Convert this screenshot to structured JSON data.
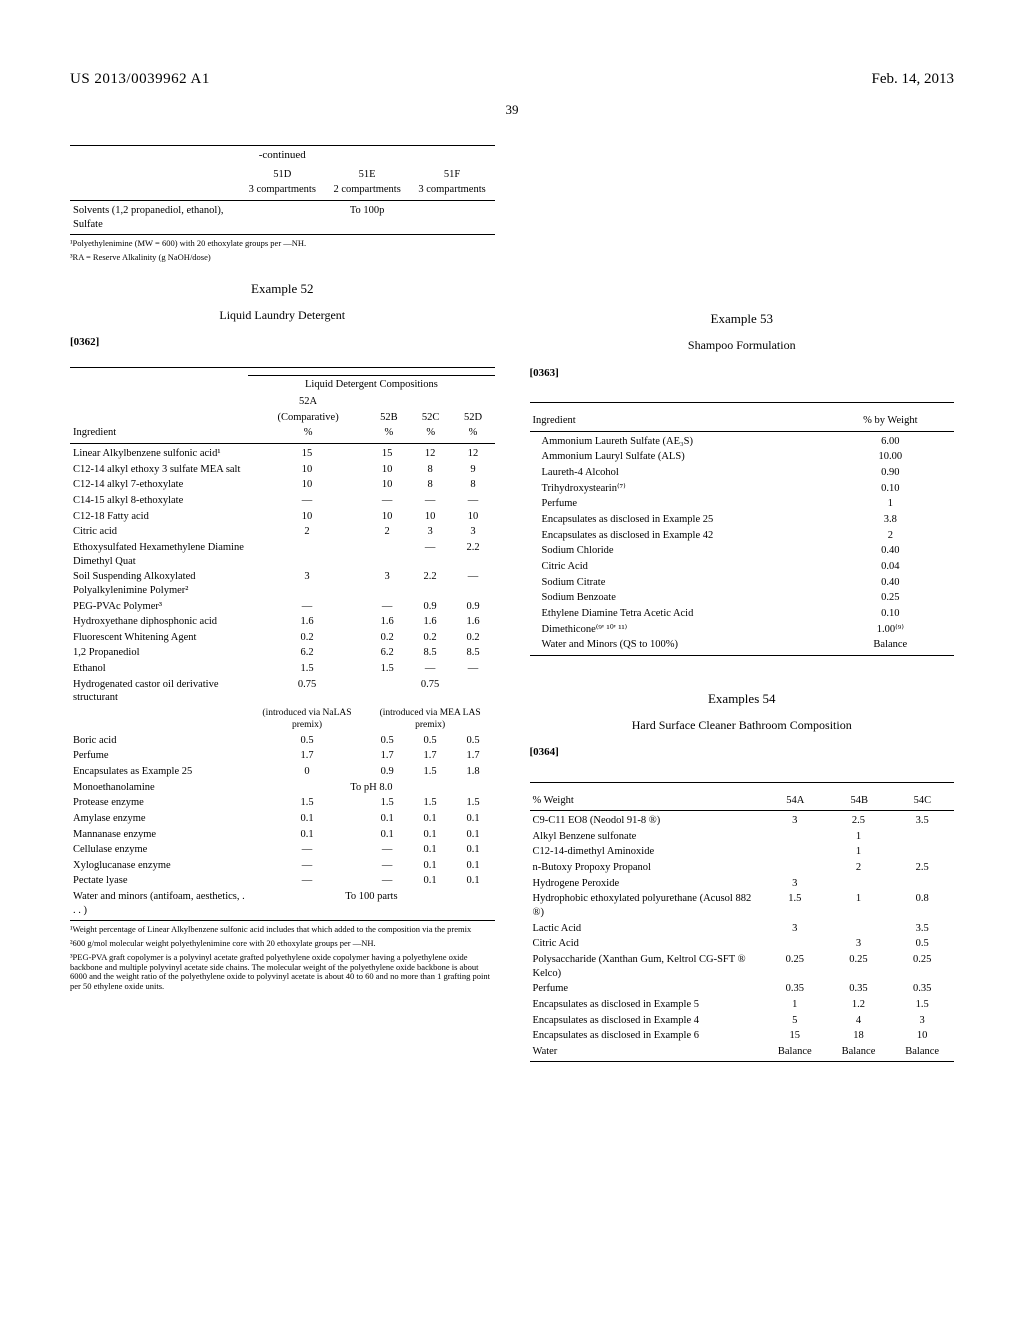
{
  "header": {
    "pub_number": "US 2013/0039962 A1",
    "pub_date": "Feb. 14, 2013",
    "page_num": "39"
  },
  "table51": {
    "continued_label": "-continued",
    "cols": [
      {
        "id": "51D",
        "desc": "3 compartments"
      },
      {
        "id": "51E",
        "desc": "2 compartments"
      },
      {
        "id": "51F",
        "desc": "3 compartments"
      }
    ],
    "row_label": "Solvents (1,2 propanediol, ethanol), Sulfate",
    "row_value": "To 100p",
    "footnotes": [
      "¹Polyethylenimine (MW = 600) with 20 ethoxylate groups per —NH.",
      "³RA = Reserve Alkalinity (g NaOH/dose)"
    ]
  },
  "example52": {
    "title": "Example 52",
    "subtitle": "Liquid Laundry Detergent",
    "para": "[0362]",
    "group_header": "Liquid Detergent Compositions",
    "cols": [
      {
        "id": "52A",
        "sub": "(Comparative)",
        "unit": "%"
      },
      {
        "id": "52B",
        "unit": "%"
      },
      {
        "id": "52C",
        "unit": "%"
      },
      {
        "id": "52D",
        "unit": "%"
      }
    ],
    "ingredient_label": "Ingredient",
    "rows": [
      {
        "name": "Linear Alkylbenzene sulfonic acid¹",
        "v": [
          "15",
          "15",
          "12",
          "12"
        ]
      },
      {
        "name": "C12-14 alkyl ethoxy 3 sulfate MEA salt",
        "v": [
          "10",
          "10",
          "8",
          "9"
        ]
      },
      {
        "name": "C12-14 alkyl 7-ethoxylate",
        "v": [
          "10",
          "10",
          "8",
          "8"
        ]
      },
      {
        "name": "C14-15 alkyl 8-ethoxylate",
        "v": [
          "—",
          "—",
          "—",
          "—"
        ]
      },
      {
        "name": "C12-18 Fatty acid",
        "v": [
          "10",
          "10",
          "10",
          "10"
        ]
      },
      {
        "name": "Citric acid",
        "v": [
          "2",
          "2",
          "3",
          "3"
        ]
      },
      {
        "name": "Ethoxysulfated Hexamethylene Diamine Dimethyl Quat",
        "v": [
          "",
          "",
          "—",
          "2.2"
        ]
      },
      {
        "name": "Soil Suspending Alkoxylated Polyalkylenimine Polymer²",
        "v": [
          "3",
          "3",
          "2.2",
          "—"
        ]
      },
      {
        "name": "PEG-PVAc Polymer³",
        "v": [
          "—",
          "—",
          "0.9",
          "0.9"
        ]
      },
      {
        "name": "Hydroxyethane diphosphonic acid",
        "v": [
          "1.6",
          "1.6",
          "1.6",
          "1.6"
        ]
      },
      {
        "name": "Fluorescent Whitening Agent",
        "v": [
          "0.2",
          "0.2",
          "0.2",
          "0.2"
        ]
      },
      {
        "name": "1,2 Propanediol",
        "v": [
          "6.2",
          "6.2",
          "8.5",
          "8.5"
        ]
      },
      {
        "name": "Ethanol",
        "v": [
          "1.5",
          "1.5",
          "—",
          "—"
        ]
      },
      {
        "name": "Hydrogenated castor oil derivative structurant",
        "v": [
          "0.75",
          "",
          "0.75",
          ""
        ],
        "special": "castor"
      },
      {
        "name": "",
        "v": [
          "(introduced via NaLAS premix)",
          "",
          "(introduced via MEA LAS premix)",
          ""
        ],
        "special": "castor2"
      },
      {
        "name": "Boric acid",
        "v": [
          "0.5",
          "0.5",
          "0.5",
          "0.5"
        ]
      },
      {
        "name": "Perfume",
        "v": [
          "1.7",
          "1.7",
          "1.7",
          "1.7"
        ]
      },
      {
        "name": "Encapsulates as Example 25",
        "v": [
          "0",
          "0.9",
          "1.5",
          "1.8"
        ]
      },
      {
        "name": "Monoethanolamine",
        "v": [
          "",
          "",
          "",
          ""
        ],
        "span": "To pH 8.0"
      },
      {
        "name": "Protease enzyme",
        "v": [
          "1.5",
          "1.5",
          "1.5",
          "1.5"
        ]
      },
      {
        "name": "Amylase enzyme",
        "v": [
          "0.1",
          "0.1",
          "0.1",
          "0.1"
        ]
      },
      {
        "name": "Mannanase enzyme",
        "v": [
          "0.1",
          "0.1",
          "0.1",
          "0.1"
        ]
      },
      {
        "name": "Cellulase enzyme",
        "v": [
          "—",
          "—",
          "0.1",
          "0.1"
        ]
      },
      {
        "name": "Xyloglucanase enzyme",
        "v": [
          "—",
          "—",
          "0.1",
          "0.1"
        ]
      },
      {
        "name": "Pectate lyase",
        "v": [
          "—",
          "—",
          "0.1",
          "0.1"
        ]
      },
      {
        "name": "Water and minors (antifoam, aesthetics, . . . )",
        "v": [
          "",
          "",
          "",
          ""
        ],
        "span": "To 100 parts"
      }
    ],
    "footnotes": [
      "¹Weight percentage of Linear Alkylbenzene sulfonic acid includes that which added to the composition via the premix",
      "²600 g/mol molecular weight polyethylenimine core with 20 ethoxylate groups per —NH.",
      "³PEG-PVA graft copolymer is a polyvinyl acetate grafted polyethylene oxide copolymer having a polyethylene oxide backbone and multiple polyvinyl acetate side chains. The molecular weight of the polyethylene oxide backbone is about 6000 and the weight ratio of the polyethylene oxide to polyvinyl acetate is about 40 to 60 and no more than 1 grafting point per 50 ethylene oxide units."
    ]
  },
  "example53": {
    "title": "Example 53",
    "subtitle": "Shampoo Formulation",
    "para": "[0363]",
    "col_headers": [
      "Ingredient",
      "% by Weight"
    ],
    "rows": [
      {
        "name": "Ammonium Laureth Sulfate (AE₃S)",
        "v": "6.00"
      },
      {
        "name": "Ammonium Lauryl Sulfate (ALS)",
        "v": "10.00"
      },
      {
        "name": "Laureth-4 Alcohol",
        "v": "0.90"
      },
      {
        "name": "Trihydroxystearin⁽⁷⁾",
        "v": "0.10"
      },
      {
        "name": "Perfume",
        "v": "1"
      },
      {
        "name": "Encapsulates as disclosed in Example 25",
        "v": "3.8"
      },
      {
        "name": "Encapsulates as disclosed in Example 42",
        "v": "2"
      },
      {
        "name": "Sodium Chloride",
        "v": "0.40"
      },
      {
        "name": "Citric Acid",
        "v": "0.04"
      },
      {
        "name": "Sodium Citrate",
        "v": "0.40"
      },
      {
        "name": "Sodium Benzoate",
        "v": "0.25"
      },
      {
        "name": "Ethylene Diamine Tetra Acetic Acid",
        "v": "0.10"
      },
      {
        "name": "Dimethicone⁽⁹' ¹⁰' ¹¹⁾",
        "v": "1.00⁽⁹⁾"
      },
      {
        "name": "Water and Minors (QS to 100%)",
        "v": "Balance"
      }
    ]
  },
  "example54": {
    "title": "Examples 54",
    "subtitle": "Hard Surface Cleaner Bathroom Composition",
    "para": "[0364]",
    "col_label": "% Weight",
    "cols": [
      "54A",
      "54B",
      "54C"
    ],
    "rows": [
      {
        "name": "C9-C11 EO8 (Neodol 91-8 ®)",
        "v": [
          "3",
          "2.5",
          "3.5"
        ]
      },
      {
        "name": "Alkyl Benzene sulfonate",
        "v": [
          "",
          "1",
          ""
        ]
      },
      {
        "name": "C12-14-dimethyl Aminoxide",
        "v": [
          "",
          "1",
          ""
        ]
      },
      {
        "name": "n-Butoxy Propoxy Propanol",
        "v": [
          "",
          "2",
          "2.5"
        ]
      },
      {
        "name": "Hydrogene Peroxide",
        "v": [
          "3",
          "",
          ""
        ]
      },
      {
        "name": "Hydrophobic ethoxylated polyurethane (Acusol 882 ®)",
        "v": [
          "1.5",
          "1",
          "0.8"
        ]
      },
      {
        "name": "Lactic Acid",
        "v": [
          "3",
          "",
          "3.5"
        ]
      },
      {
        "name": "Citric Acid",
        "v": [
          "",
          "3",
          "0.5"
        ]
      },
      {
        "name": "Polysaccharide (Xanthan Gum, Keltrol CG-SFT ® Kelco)",
        "v": [
          "0.25",
          "0.25",
          "0.25"
        ]
      },
      {
        "name": "Perfume",
        "v": [
          "0.35",
          "0.35",
          "0.35"
        ]
      },
      {
        "name": "Encapsulates as disclosed in Example 5",
        "v": [
          "1",
          "1.2",
          "1.5"
        ]
      },
      {
        "name": "Encapsulates as disclosed in Example 4",
        "v": [
          "5",
          "4",
          "3"
        ]
      },
      {
        "name": "Encapsulates as disclosed in Example 6",
        "v": [
          "15",
          "18",
          "10"
        ]
      },
      {
        "name": "Water",
        "v": [
          "Balance",
          "Balance",
          "Balance"
        ]
      }
    ]
  }
}
